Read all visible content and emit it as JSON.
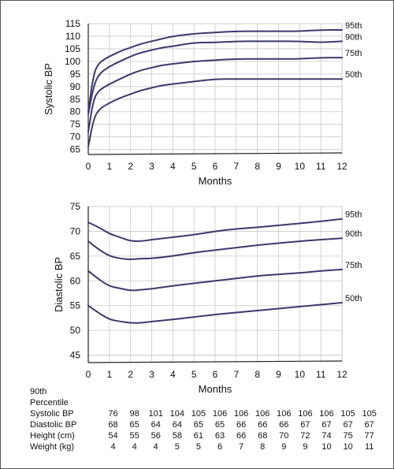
{
  "chart_data": [
    {
      "type": "line",
      "ylabel": "Systolic BP",
      "xlabel": "Months",
      "xlim": [
        0,
        12
      ],
      "ylim": [
        63,
        115
      ],
      "xticks": [
        "0",
        "1",
        "2",
        "3",
        "4",
        "5",
        "6",
        "7",
        "8",
        "9",
        "10",
        "11",
        "12"
      ],
      "yticks": [
        "65",
        "70",
        "75",
        "80",
        "85",
        "90",
        "95",
        "100",
        "105",
        "110",
        "115"
      ],
      "grid": true,
      "series_color": "#3a3a6e",
      "series": [
        {
          "name": "95th",
          "x": [
            0,
            0.25,
            0.5,
            1,
            1.5,
            2,
            2.5,
            3,
            3.5,
            4,
            5,
            6,
            7,
            8,
            9,
            10,
            11,
            12
          ],
          "y": [
            80,
            95,
            99.5,
            102,
            104,
            105.5,
            107,
            108,
            109,
            110,
            111,
            111.5,
            112,
            112,
            112,
            112,
            112.5,
            112.5
          ]
        },
        {
          "name": "90th",
          "x": [
            0,
            0.25,
            0.5,
            1,
            1.5,
            2,
            2.5,
            3,
            3.5,
            4,
            5,
            6,
            7,
            8,
            9,
            10,
            11,
            12
          ],
          "y": [
            79,
            90,
            95,
            98,
            100,
            102,
            103.5,
            104.5,
            105.5,
            106,
            107.5,
            107.5,
            108,
            108,
            108,
            108,
            107.5,
            108
          ]
        },
        {
          "name": "75th",
          "x": [
            0,
            0.25,
            0.5,
            1,
            1.5,
            2,
            2.5,
            3,
            3.5,
            4,
            5,
            6,
            7,
            8,
            9,
            10,
            11,
            12
          ],
          "y": [
            72,
            85,
            88.5,
            91,
            93,
            95,
            96.5,
            97.5,
            98.5,
            99,
            100,
            100.5,
            101,
            101,
            101,
            101,
            101.5,
            101.5
          ]
        },
        {
          "name": "50th",
          "x": [
            0,
            0.25,
            0.5,
            1,
            1.5,
            2,
            2.5,
            3,
            3.5,
            4,
            5,
            6,
            7,
            8,
            9,
            10,
            11,
            12
          ],
          "y": [
            66,
            77,
            81,
            83.5,
            85.5,
            87,
            88.5,
            89.5,
            90.5,
            91,
            92,
            93,
            93,
            93,
            93,
            93,
            93,
            93
          ]
        }
      ]
    },
    {
      "type": "line",
      "ylabel": "Diastolic BP",
      "xlabel": "Months",
      "xlim": [
        0,
        12
      ],
      "ylim": [
        43.5,
        75
      ],
      "xticks": [
        "0",
        "1",
        "2",
        "3",
        "4",
        "5",
        "6",
        "7",
        "8",
        "9",
        "10",
        "11",
        "12"
      ],
      "yticks": [
        "45",
        "50",
        "55",
        "60",
        "65",
        "70",
        "75"
      ],
      "grid": true,
      "series_color": "#3a3a6e",
      "series": [
        {
          "name": "95th",
          "x": [
            0,
            0.5,
            1,
            1.5,
            2,
            2.5,
            3,
            4,
            5,
            6,
            7,
            8,
            9,
            10,
            11,
            12
          ],
          "y": [
            71.8,
            70.8,
            69.5,
            68.8,
            68,
            68,
            68.3,
            68.8,
            69.3,
            70,
            70.5,
            70.8,
            71.2,
            71.6,
            72,
            72.5
          ]
        },
        {
          "name": "90th",
          "x": [
            0,
            0.5,
            1,
            1.5,
            2,
            2.5,
            3,
            4,
            5,
            6,
            7,
            8,
            9,
            10,
            11,
            12
          ],
          "y": [
            68,
            66.3,
            65,
            64.5,
            64.3,
            64.5,
            64.5,
            65,
            65.7,
            66.2,
            66.7,
            67.2,
            67.6,
            68,
            68.3,
            68.6
          ]
        },
        {
          "name": "75th",
          "x": [
            0,
            0.5,
            1,
            1.5,
            2,
            2.5,
            3,
            4,
            5,
            6,
            7,
            8,
            9,
            10,
            11,
            12
          ],
          "y": [
            62,
            60.3,
            58.9,
            58.5,
            58,
            58.2,
            58.4,
            59,
            59.5,
            60,
            60.5,
            61,
            61.3,
            61.6,
            62,
            62.3
          ]
        },
        {
          "name": "50th",
          "x": [
            0,
            0.5,
            1,
            1.5,
            2,
            2.5,
            3,
            4,
            5,
            6,
            7,
            8,
            9,
            10,
            11,
            12
          ],
          "y": [
            55,
            53.5,
            52.2,
            51.8,
            51.5,
            51.5,
            51.8,
            52.2,
            52.7,
            53.2,
            53.6,
            54,
            54.4,
            54.8,
            55.2,
            55.6
          ]
        }
      ]
    }
  ],
  "table": {
    "header": [
      "90th",
      "Percentile"
    ],
    "rows": [
      {
        "label": "Systolic BP",
        "values": [
          "76",
          "98",
          "101",
          "104",
          "105",
          "106",
          "106",
          "106",
          "106",
          "106",
          "106",
          "105",
          "105"
        ]
      },
      {
        "label": "Diastolic BP",
        "values": [
          "68",
          "65",
          "64",
          "64",
          "65",
          "65",
          "66",
          "66",
          "66",
          "67",
          "67",
          "67",
          "67"
        ]
      },
      {
        "label": "Height (cm)",
        "values": [
          "54",
          "55",
          "56",
          "58",
          "61",
          "63",
          "66",
          "68",
          "70",
          "72",
          "74",
          "75",
          "77"
        ]
      },
      {
        "label": "Weight (kg)",
        "values": [
          "4",
          "4",
          "4",
          "5",
          "5",
          "6",
          "7",
          "8",
          "9",
          "9",
          "10",
          "10",
          "11"
        ]
      }
    ]
  }
}
